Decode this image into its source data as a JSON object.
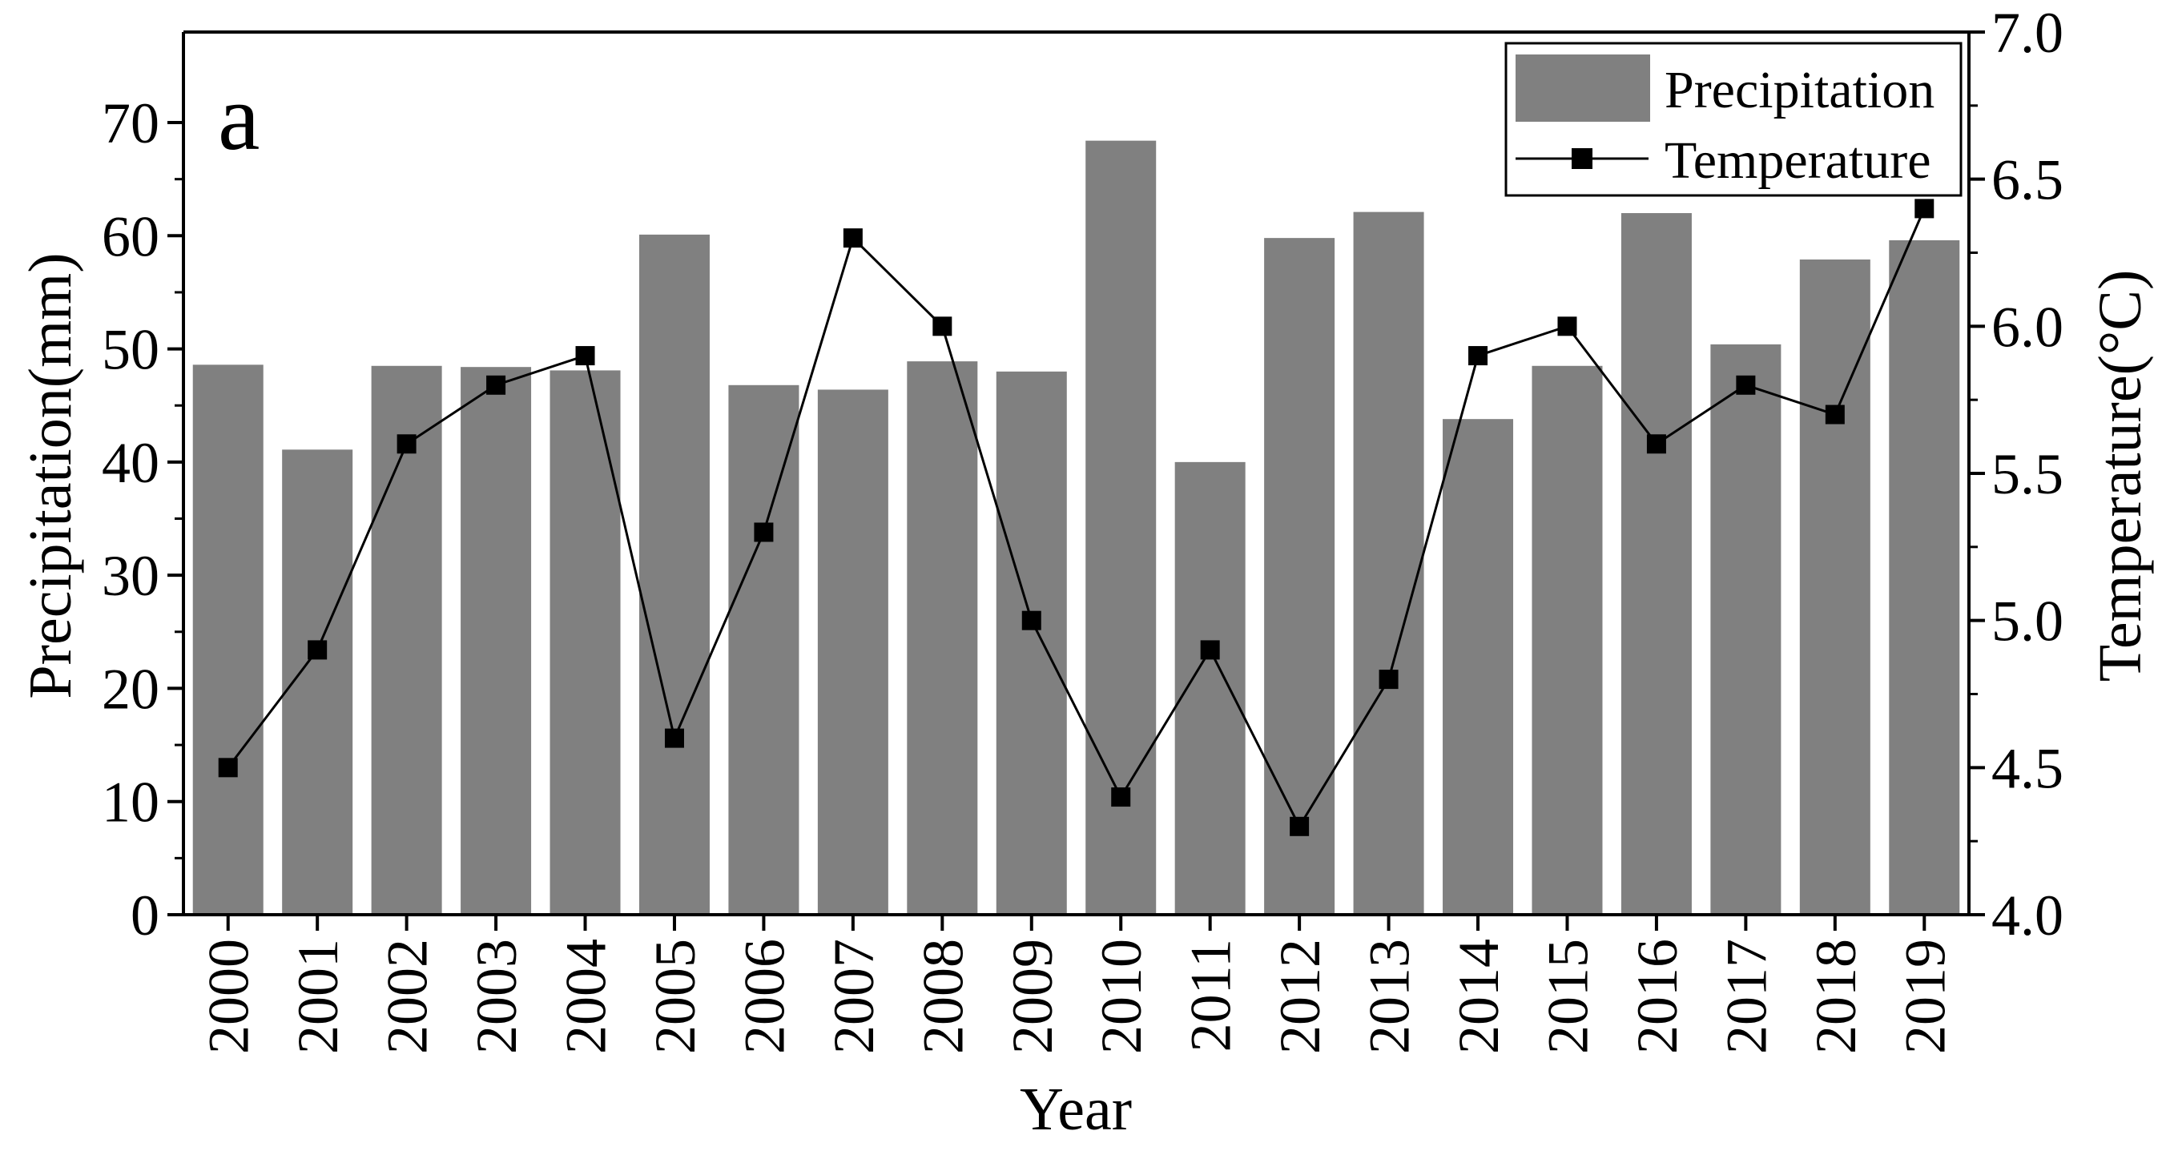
{
  "chart_data": {
    "type": "bar",
    "panel_label": "a",
    "categories": [
      "2000",
      "2001",
      "2002",
      "2003",
      "2004",
      "2005",
      "2006",
      "2007",
      "2008",
      "2009",
      "2010",
      "2011",
      "2012",
      "2013",
      "2014",
      "2015",
      "2016",
      "2017",
      "2018",
      "2019"
    ],
    "xlabel": "Year",
    "series": [
      {
        "name": "Precipitation",
        "type": "bar",
        "axis": "left",
        "color": "#808080",
        "values": [
          48.6,
          41.1,
          48.5,
          48.4,
          48.1,
          60.1,
          46.8,
          46.4,
          48.9,
          48.0,
          68.4,
          40.0,
          59.8,
          62.1,
          43.8,
          48.5,
          62.0,
          50.4,
          57.9,
          59.6
        ]
      },
      {
        "name": "Temperature",
        "type": "line",
        "axis": "right",
        "color": "#000000",
        "marker": "square",
        "values": [
          4.5,
          4.9,
          5.6,
          5.8,
          5.9,
          4.6,
          5.3,
          6.3,
          6.0,
          5.0,
          4.4,
          4.9,
          4.3,
          4.8,
          5.9,
          6.0,
          5.6,
          5.8,
          5.7,
          6.4
        ]
      }
    ],
    "y_left": {
      "label": "Precipitation(mm)",
      "range": [
        0,
        78
      ],
      "ticks": [
        0,
        10,
        20,
        30,
        40,
        50,
        60,
        70
      ],
      "tick_labels": [
        "0",
        "10",
        "20",
        "30",
        "40",
        "50",
        "60",
        "70"
      ]
    },
    "y_right": {
      "label": "Temperature(°C)",
      "range": [
        4.0,
        7.0
      ],
      "ticks": [
        4.0,
        4.5,
        5.0,
        5.5,
        6.0,
        6.5,
        7.0
      ],
      "tick_labels": [
        "4.0",
        "4.5",
        "5.0",
        "5.5",
        "6.0",
        "6.5",
        "7.0"
      ]
    },
    "grid": false,
    "legend": {
      "position": "top-right",
      "entries": [
        "Precipitation",
        "Temperature"
      ]
    }
  }
}
